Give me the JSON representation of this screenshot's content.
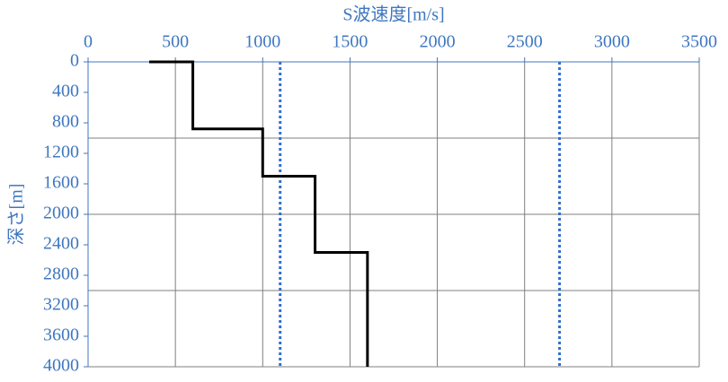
{
  "chart_data": {
    "type": "line",
    "xlabel": "S波速度[m/s]",
    "ylabel": "深さ[m]",
    "xlim": [
      0,
      3500
    ],
    "xticks": [
      0,
      500,
      1000,
      1500,
      2000,
      2500,
      3000,
      3500
    ],
    "ylim": [
      0,
      4000
    ],
    "yticks": [
      0,
      400,
      800,
      1200,
      1600,
      2000,
      2400,
      2800,
      3200,
      3600,
      4000
    ],
    "y_inverted": true,
    "x_axis_position": "top",
    "ygrid": [
      1000,
      2000,
      3000
    ],
    "axis_color": "#3f77c0",
    "grid_color": "#7f7f7f",
    "series": [
      {
        "color": "#000000",
        "x": [
          350,
          600,
          600,
          1000,
          1000,
          1300,
          1300,
          1600,
          1600
        ],
        "y": [
          0,
          0,
          880,
          880,
          1500,
          1500,
          2500,
          2500,
          4000
        ]
      }
    ],
    "vlines": [
      {
        "value": 1100,
        "color": "#2f6fd0"
      },
      {
        "value": 2700,
        "color": "#2f6fd0"
      }
    ]
  }
}
